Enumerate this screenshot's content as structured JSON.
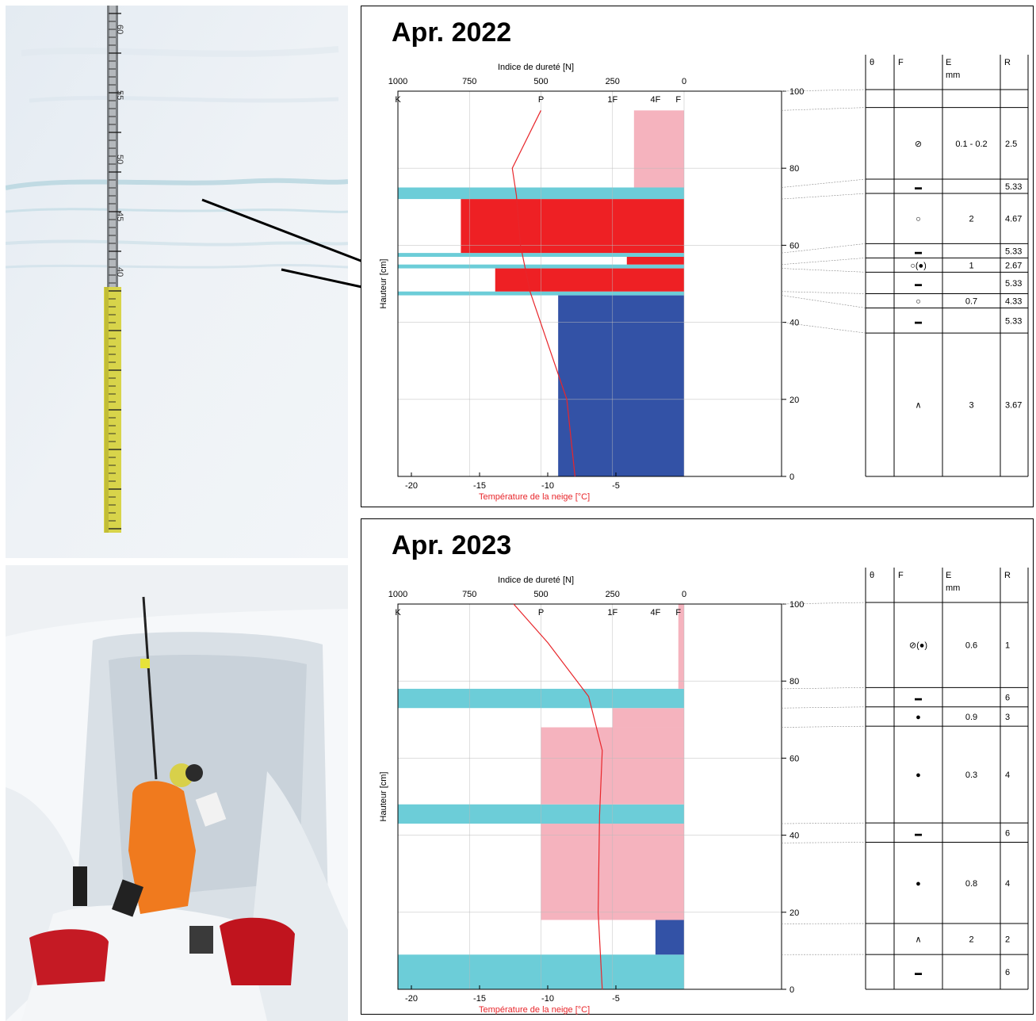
{
  "chart_data": [
    {
      "type": "bar",
      "title": "Apr. 2022",
      "top_axis_title": "Indice de dureté [N]",
      "top_ticks": [
        "1000",
        "750",
        "500",
        "250",
        "0"
      ],
      "hardness_labels": [
        "K",
        "P",
        "1F",
        "4F",
        "F"
      ],
      "bottom_axis_title": "Température de la neige [°C]",
      "bottom_ticks": [
        "-20",
        "-15",
        "-10",
        "-5"
      ],
      "ylabel": "Hauteur [cm]",
      "y_ticks": [
        "0",
        "20",
        "40",
        "60",
        "80",
        "100"
      ],
      "ylim": [
        0,
        100
      ],
      "hardness_layers": [
        {
          "bottom": 0,
          "top": 47,
          "hardness_N": 440,
          "color": "#3352a6"
        },
        {
          "bottom": 47,
          "top": 48,
          "hardness_N": 1000,
          "color": "#6ccdd8"
        },
        {
          "bottom": 48,
          "top": 54,
          "hardness_N": 660,
          "color": "#ee2024"
        },
        {
          "bottom": 54,
          "top": 55,
          "hardness_N": 1000,
          "color": "#6ccdd8"
        },
        {
          "bottom": 55,
          "top": 57,
          "hardness_N": 200,
          "color": "#ee2024"
        },
        {
          "bottom": 57,
          "top": 58,
          "hardness_N": 1000,
          "color": "#6ccdd8"
        },
        {
          "bottom": 58,
          "top": 72,
          "hardness_N": 780,
          "color": "#ee2024"
        },
        {
          "bottom": 72,
          "top": 75,
          "hardness_N": 1000,
          "color": "#6ccdd8"
        },
        {
          "bottom": 75,
          "top": 95,
          "hardness_N": 175,
          "color": "#f5b3be"
        }
      ],
      "temperature_profile": [
        {
          "height": 0,
          "temp": -8
        },
        {
          "height": 20,
          "temp": -8.6
        },
        {
          "height": 48,
          "temp": -11.3
        },
        {
          "height": 60,
          "temp": -12
        },
        {
          "height": 73,
          "temp": -12.3
        },
        {
          "height": 80,
          "temp": -12.6
        },
        {
          "height": 95,
          "temp": -10.5
        }
      ],
      "table_headers": [
        "θ",
        "F",
        "E",
        "R"
      ],
      "table_units": {
        "E": "mm"
      },
      "table_rows": [
        {
          "bottom": 95,
          "top": 100,
          "F": "",
          "E": "",
          "R": ""
        },
        {
          "bottom": 75,
          "top": 95,
          "F": "⊘",
          "E": "0.1 - 0.2",
          "R": "2.5"
        },
        {
          "bottom": 72,
          "top": 75,
          "F": "▬",
          "E": "",
          "R": "5.33"
        },
        {
          "bottom": 58,
          "top": 72,
          "F": "○",
          "E": "2",
          "R": "4.67"
        },
        {
          "bottom": 55,
          "top": 58,
          "F": "▬",
          "E": "",
          "R": "5.33"
        },
        {
          "bottom": 54,
          "top": 55,
          "F": "○(●)",
          "E": "1",
          "R": "2.67"
        },
        {
          "bottom": 48,
          "top": 54,
          "F": "▬",
          "E": "",
          "R": "5.33"
        },
        {
          "bottom": 47,
          "top": 48,
          "F": "○",
          "E": "0.7",
          "R": "4.33"
        },
        {
          "bottom": 40,
          "top": 47,
          "F": "▬",
          "E": "",
          "R": "5.33"
        },
        {
          "bottom": 0,
          "top": 40,
          "F": "∧",
          "E": "3",
          "R": "3.67"
        }
      ]
    },
    {
      "type": "bar",
      "title": "Apr. 2023",
      "top_axis_title": "Indice de dureté [N]",
      "top_ticks": [
        "1000",
        "750",
        "500",
        "250",
        "0"
      ],
      "hardness_labels": [
        "K",
        "P",
        "1F",
        "4F",
        "F"
      ],
      "bottom_axis_title": "Température de la neige [°C]",
      "bottom_ticks": [
        "-20",
        "-15",
        "-10",
        "-5"
      ],
      "ylabel": "Hauteur [cm]",
      "y_ticks": [
        "0",
        "20",
        "40",
        "60",
        "80",
        "100"
      ],
      "ylim": [
        0,
        100
      ],
      "hardness_layers": [
        {
          "bottom": 0,
          "top": 9,
          "hardness_N": 1000,
          "color": "#6ccdd8"
        },
        {
          "bottom": 9,
          "top": 18,
          "hardness_N": 100,
          "color": "#3352a6"
        },
        {
          "bottom": 18,
          "top": 43,
          "hardness_N": 500,
          "color": "#f5b3be"
        },
        {
          "bottom": 43,
          "top": 48,
          "hardness_N": 1000,
          "color": "#6ccdd8"
        },
        {
          "bottom": 48,
          "top": 68,
          "hardness_N": 500,
          "color": "#f5b3be"
        },
        {
          "bottom": 68,
          "top": 73,
          "hardness_N": 250,
          "color": "#f5b3be"
        },
        {
          "bottom": 73,
          "top": 78,
          "hardness_N": 1000,
          "color": "#6ccdd8"
        },
        {
          "bottom": 78,
          "top": 100,
          "hardness_N": 20,
          "color": "#f5b3be"
        }
      ],
      "temperature_profile": [
        {
          "height": 0,
          "temp": -6
        },
        {
          "height": 20,
          "temp": -6.3
        },
        {
          "height": 45,
          "temp": -6.2
        },
        {
          "height": 62,
          "temp": -6
        },
        {
          "height": 76,
          "temp": -7
        },
        {
          "height": 90,
          "temp": -10
        },
        {
          "height": 100,
          "temp": -12.5
        }
      ],
      "table_headers": [
        "θ",
        "F",
        "E",
        "R"
      ],
      "table_units": {
        "E": "mm"
      },
      "table_rows": [
        {
          "bottom": 78,
          "top": 100,
          "F": "⊘(●)",
          "E": "0.6",
          "R": "1"
        },
        {
          "bottom": 73,
          "top": 78,
          "F": "▬",
          "E": "",
          "R": "6"
        },
        {
          "bottom": 68,
          "top": 73,
          "F": "●",
          "E": "0.9",
          "R": "3"
        },
        {
          "bottom": 43,
          "top": 68,
          "F": "●",
          "E": "0.3",
          "R": "4"
        },
        {
          "bottom": 38,
          "top": 43,
          "F": "▬",
          "E": "",
          "R": "6"
        },
        {
          "bottom": 17,
          "top": 38,
          "F": "●",
          "E": "0.8",
          "R": "4"
        },
        {
          "bottom": 9,
          "top": 17,
          "F": "∧",
          "E": "2",
          "R": "2"
        },
        {
          "bottom": 0,
          "top": 9,
          "F": "▬",
          "E": "",
          "R": "6"
        }
      ]
    }
  ],
  "photos": [
    {
      "subject": "snow-pit-wall-with-ruler",
      "ruler_marks": [
        "60",
        "55",
        "50",
        "45",
        "40"
      ]
    },
    {
      "subject": "person-digging-snow-pit"
    }
  ]
}
